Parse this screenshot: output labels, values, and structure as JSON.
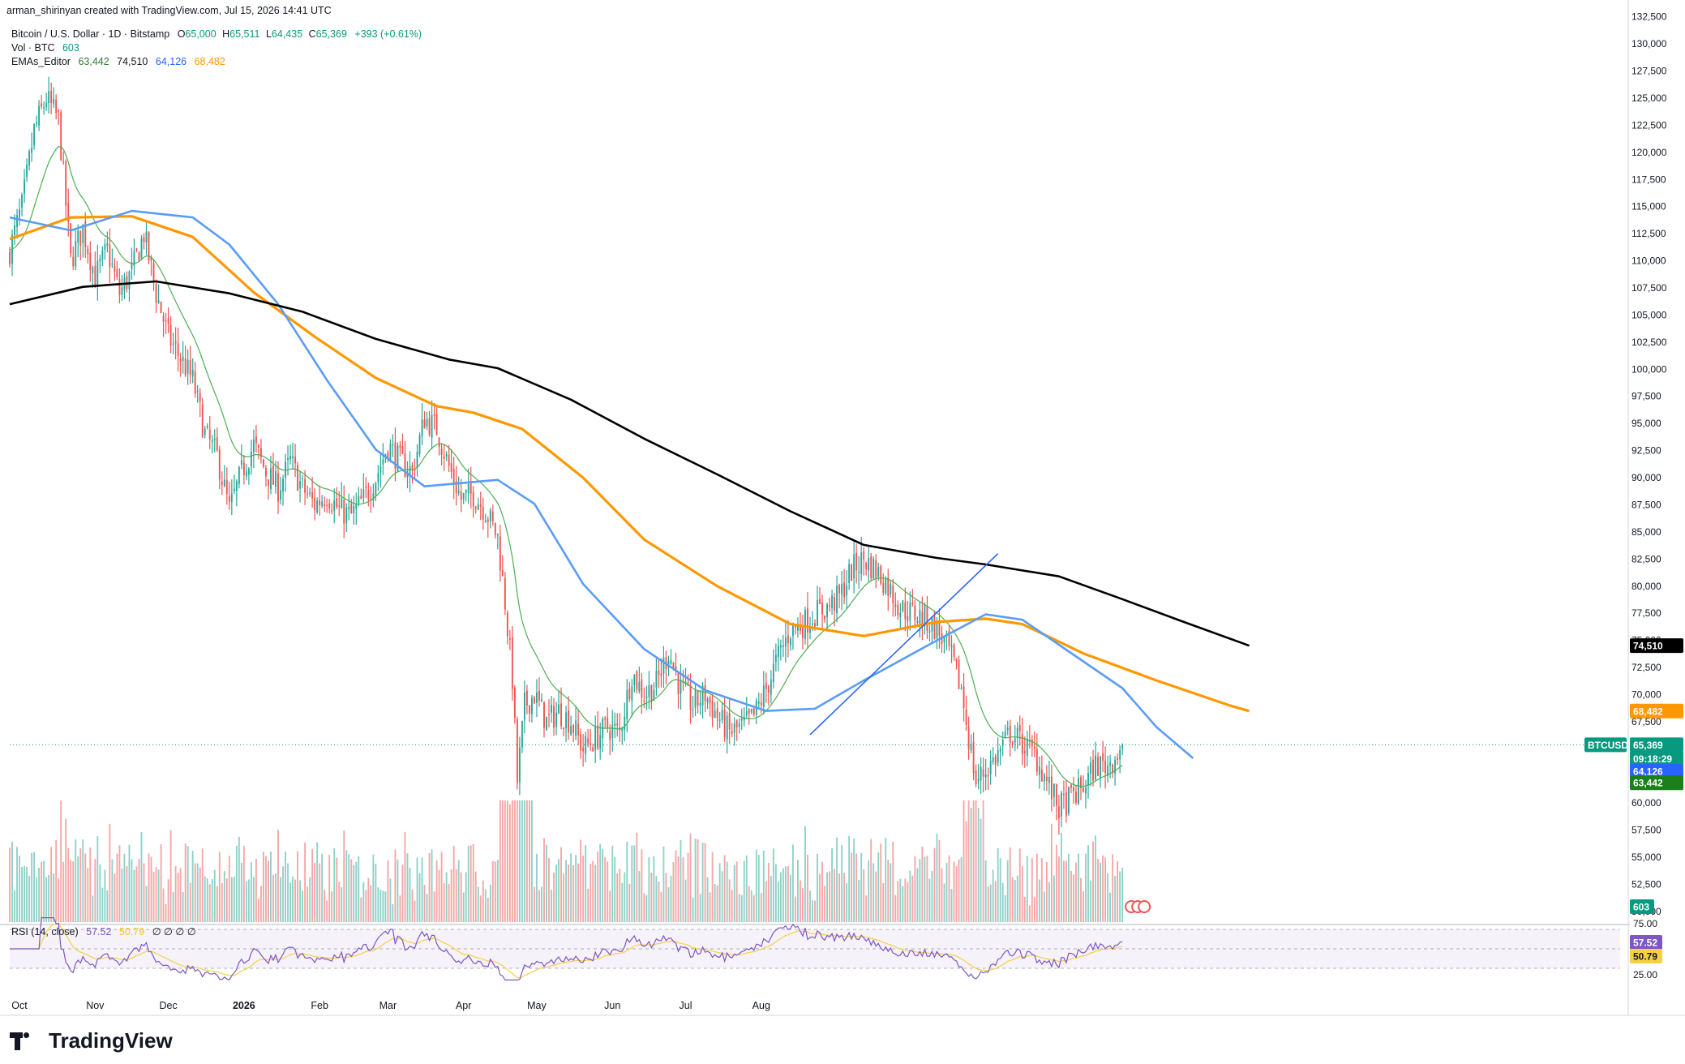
{
  "header": {
    "credit": "arman_shirinyan created with TradingView.com, Jul 15, 2026 14:41 UTC",
    "symbol_line": {
      "name": "Bitcoin / U.S. Dollar · 1D · Bitstamp",
      "o_label": "O",
      "o": "65,000",
      "h_label": "H",
      "h": "65,511",
      "l_label": "L",
      "l": "64,435",
      "c_label": "C",
      "c": "65,369",
      "change": "+393 (+0.61%)"
    },
    "vol_line": {
      "name": "Vol · BTC",
      "value": "603"
    },
    "ema_line": {
      "name": "EMAs_Editor",
      "v1": "63,442",
      "v2": "74,510",
      "v3": "64,126",
      "v4": "68,482"
    },
    "rsi_line": {
      "name": "RSI (14, close)",
      "v1": "57.52",
      "v2": "50.79",
      "extra": "∅ ∅ ∅ ∅"
    }
  },
  "brand": {
    "name": "TradingView"
  },
  "colors": {
    "up": "#26a69a",
    "down": "#ef5350",
    "ema_fast": "#4caf50",
    "ema_blue": "#5b9cf6",
    "ema_orange": "#ff9800",
    "ema_black": "#000000",
    "rsi": "#7e57c2",
    "rsi_ma": "#f5d142",
    "trendline": "#2962ff",
    "accent_teal": "#089981"
  },
  "chart_data": {
    "type": "candlestick",
    "title": "Bitcoin / U.S. Dollar · 1D · Bitstamp",
    "x_ticks": [
      "Oct",
      "Nov",
      "Dec",
      "2026",
      "Feb",
      "Mar",
      "Apr",
      "May",
      "Jun",
      "Jul",
      "Aug"
    ],
    "y_ticks": [
      "132,500",
      "130,000",
      "127,500",
      "125,000",
      "122,500",
      "120,000",
      "117,500",
      "115,000",
      "112,500",
      "110,000",
      "107,500",
      "105,000",
      "102,500",
      "100,000",
      "97,500",
      "95,000",
      "92,500",
      "90,000",
      "87,500",
      "85,000",
      "82,500",
      "80,000",
      "77,500",
      "75,000",
      "72,500",
      "70,000",
      "67,500",
      "65,000",
      "62,500",
      "60,000",
      "57,500",
      "55,000",
      "52,500",
      "50,000"
    ],
    "ylim": [
      48800,
      133000
    ],
    "anchors": [
      [
        0,
        111000
      ],
      [
        5,
        115000
      ],
      [
        10,
        122000
      ],
      [
        15,
        125000
      ],
      [
        20,
        123000
      ],
      [
        25,
        110000
      ],
      [
        30,
        113000
      ],
      [
        35,
        108500
      ],
      [
        40,
        111000
      ],
      [
        45,
        107000
      ],
      [
        50,
        109000
      ],
      [
        55,
        112500
      ],
      [
        60,
        107000
      ],
      [
        65,
        103000
      ],
      [
        70,
        101000
      ],
      [
        75,
        99000
      ],
      [
        80,
        94000
      ],
      [
        85,
        92000
      ],
      [
        90,
        87000
      ],
      [
        95,
        90500
      ],
      [
        100,
        93000
      ],
      [
        105,
        90500
      ],
      [
        110,
        89000
      ],
      [
        115,
        91500
      ],
      [
        120,
        89000
      ],
      [
        125,
        87500
      ],
      [
        130,
        88500
      ],
      [
        135,
        87000
      ],
      [
        140,
        86500
      ],
      [
        145,
        88000
      ],
      [
        150,
        90000
      ],
      [
        155,
        93000
      ],
      [
        160,
        91500
      ],
      [
        165,
        90500
      ],
      [
        170,
        95500
      ],
      [
        175,
        94500
      ],
      [
        180,
        91000
      ],
      [
        185,
        88000
      ],
      [
        190,
        88500
      ],
      [
        195,
        87000
      ],
      [
        200,
        84500
      ],
      [
        203,
        78500
      ],
      [
        206,
        71500
      ],
      [
        208,
        62000
      ],
      [
        211,
        69000
      ],
      [
        215,
        70000
      ],
      [
        220,
        67500
      ],
      [
        225,
        68500
      ],
      [
        230,
        67500
      ],
      [
        235,
        65000
      ],
      [
        240,
        66000
      ],
      [
        245,
        67000
      ],
      [
        250,
        66500
      ],
      [
        255,
        72000
      ],
      [
        260,
        70000
      ],
      [
        265,
        71000
      ],
      [
        270,
        74000
      ],
      [
        275,
        70500
      ],
      [
        280,
        69000
      ],
      [
        285,
        70000
      ],
      [
        290,
        68000
      ],
      [
        295,
        66500
      ],
      [
        300,
        67000
      ],
      [
        305,
        68000
      ],
      [
        310,
        70500
      ],
      [
        315,
        73500
      ],
      [
        320,
        76000
      ],
      [
        325,
        76500
      ],
      [
        330,
        77500
      ],
      [
        335,
        78000
      ],
      [
        340,
        79000
      ],
      [
        345,
        81500
      ],
      [
        350,
        82500
      ],
      [
        355,
        81500
      ],
      [
        360,
        80000
      ],
      [
        365,
        78000
      ],
      [
        370,
        77500
      ],
      [
        375,
        77000
      ],
      [
        380,
        76000
      ],
      [
        385,
        74000
      ],
      [
        390,
        70500
      ],
      [
        393,
        66000
      ],
      [
        396,
        62000
      ],
      [
        400,
        63000
      ],
      [
        405,
        64500
      ],
      [
        410,
        66500
      ],
      [
        415,
        65500
      ],
      [
        420,
        64500
      ],
      [
        425,
        62000
      ],
      [
        430,
        59500
      ],
      [
        435,
        60500
      ],
      [
        440,
        61500
      ],
      [
        445,
        63500
      ],
      [
        450,
        63500
      ],
      [
        454,
        64600
      ],
      [
        456,
        65369
      ]
    ],
    "ohlc_last": {
      "open": 65000,
      "high": 65511,
      "low": 64435,
      "close": 65369,
      "change": 393,
      "change_pct": 0.61
    },
    "series": [
      {
        "name": "EMAs_Editor 1",
        "last": 63442,
        "color": "#4caf50"
      },
      {
        "name": "EMAs_Editor 2",
        "last": 74510,
        "color": "#000000",
        "points": [
          [
            0,
            106000
          ],
          [
            30,
            107600
          ],
          [
            60,
            108100
          ],
          [
            90,
            107000
          ],
          [
            120,
            105300
          ],
          [
            150,
            102800
          ],
          [
            180,
            100900
          ],
          [
            200,
            100100
          ],
          [
            230,
            97200
          ],
          [
            260,
            93600
          ],
          [
            290,
            90300
          ],
          [
            320,
            86900
          ],
          [
            350,
            83800
          ],
          [
            380,
            82600
          ],
          [
            400,
            82000
          ],
          [
            430,
            80900
          ],
          [
            456,
            78800
          ],
          [
            480,
            76800
          ],
          [
            508,
            74510
          ]
        ]
      },
      {
        "name": "EMAs_Editor 3",
        "last": 64126,
        "color": "#5b9cf6",
        "points": [
          [
            0,
            114000
          ],
          [
            25,
            112800
          ],
          [
            50,
            114600
          ],
          [
            75,
            114000
          ],
          [
            90,
            111500
          ],
          [
            110,
            106000
          ],
          [
            130,
            99000
          ],
          [
            150,
            92600
          ],
          [
            170,
            89200
          ],
          [
            185,
            89500
          ],
          [
            200,
            89800
          ],
          [
            215,
            87600
          ],
          [
            235,
            80200
          ],
          [
            260,
            74200
          ],
          [
            285,
            70400
          ],
          [
            310,
            68500
          ],
          [
            330,
            68700
          ],
          [
            350,
            71300
          ],
          [
            380,
            75000
          ],
          [
            400,
            77400
          ],
          [
            415,
            76900
          ],
          [
            430,
            74600
          ],
          [
            456,
            70600
          ],
          [
            470,
            67000
          ],
          [
            485,
            64126
          ]
        ]
      },
      {
        "name": "EMAs_Editor 4",
        "last": 68482,
        "color": "#ff9800",
        "points": [
          [
            0,
            112000
          ],
          [
            25,
            114000
          ],
          [
            50,
            114100
          ],
          [
            75,
            112200
          ],
          [
            100,
            107100
          ],
          [
            125,
            103000
          ],
          [
            150,
            99200
          ],
          [
            175,
            96600
          ],
          [
            190,
            96000
          ],
          [
            210,
            94500
          ],
          [
            235,
            90000
          ],
          [
            260,
            84300
          ],
          [
            290,
            80000
          ],
          [
            320,
            76500
          ],
          [
            350,
            75400
          ],
          [
            380,
            76700
          ],
          [
            400,
            77000
          ],
          [
            415,
            76500
          ],
          [
            440,
            73800
          ],
          [
            470,
            71300
          ],
          [
            500,
            69000
          ],
          [
            508,
            68482
          ]
        ]
      },
      {
        "name": "BTCUSD",
        "last": 65369,
        "label": "BTCUSD",
        "countdown": "09:18:29"
      },
      {
        "name": "Vol · BTC",
        "last": 603
      },
      {
        "name": "RSI (14, close)",
        "last": 57.52,
        "ma_last": 50.79,
        "levels": [
          30,
          50,
          70
        ]
      }
    ],
    "price_labels": {
      "ema_black": "74,510",
      "ema_orange": "68,482",
      "ticker": "BTCUSD",
      "price": "65,369",
      "countdown": "09:18:29",
      "ema_blue": "64,126",
      "ema_green": "63,442",
      "volume": "603",
      "rsi": "57.52",
      "rsi_ma": "50.79",
      "rsi_top": "75.00",
      "rsi_bottom": "25.00"
    },
    "trendline": {
      "from": [
        328,
        66300
      ],
      "to": [
        405,
        83000
      ]
    },
    "grid": false,
    "legend": "top-left"
  }
}
